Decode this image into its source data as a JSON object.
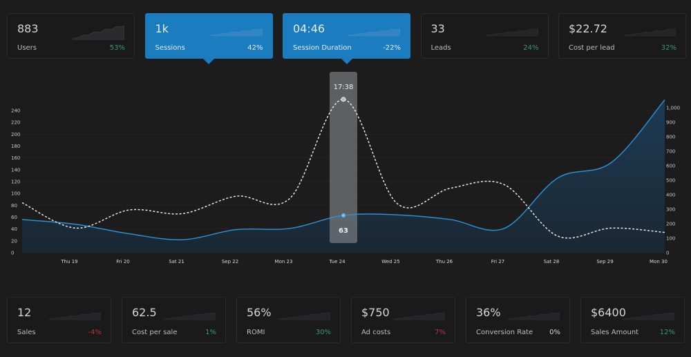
{
  "top_cards": [
    {
      "value": "883",
      "label": "Users",
      "change": "53%",
      "change_color": "#3a9a6a",
      "active": false
    },
    {
      "value": "1k",
      "label": "Sessions",
      "change": "42%",
      "change_color": "#e3eef7",
      "active": true
    },
    {
      "value": "04:46",
      "label": "Session Duration",
      "change": "-22%",
      "change_color": "#e3eef7",
      "active": true
    },
    {
      "value": "33",
      "label": "Leads",
      "change": "24%",
      "change_color": "#3a9a6a",
      "active": false
    },
    {
      "value": "$22.72",
      "label": "Cost per lead",
      "change": "32%",
      "change_color": "#3a9a6a",
      "active": false
    }
  ],
  "bottom_cards": [
    {
      "value": "12",
      "label": "Sales",
      "change": "-4%",
      "change_color": "#b8343a"
    },
    {
      "value": "62.5",
      "label": "Cost per sale",
      "change": "1%",
      "change_color": "#3a9a6a"
    },
    {
      "value": "56%",
      "label": "ROMI",
      "change": "30%",
      "change_color": "#3a9a6a"
    },
    {
      "value": "$750",
      "label": "Ad costs",
      "change": "7%",
      "change_color": "#b8343a"
    },
    {
      "value": "36%",
      "label": "Conversion Rate",
      "change": "0%",
      "change_color": "#d6d6d6"
    },
    {
      "value": "$6400",
      "label": "Sales Amount",
      "change": "12%",
      "change_color": "#3a9a6a"
    }
  ],
  "chart_data": {
    "type": "line",
    "categories": [
      "",
      "Thu 19",
      "Fri 20",
      "Sat 21",
      "Sep 22",
      "Mon 23",
      "Tue 24",
      "Wed 25",
      "Thu 26",
      "Fri 27",
      "Sat 28",
      "Sep 29",
      "Mon 30"
    ],
    "series": [
      {
        "axis": "left",
        "style": "solid-area",
        "color": "#2f8fd0",
        "values": [
          56,
          48,
          32,
          22,
          39,
          41,
          63,
          64,
          56,
          41,
          126,
          152,
          258
        ]
      },
      {
        "axis": "right",
        "style": "dashed",
        "color": "#e8e8e8",
        "values": [
          345,
          170,
          295,
          270,
          390,
          375,
          1058,
          340,
          445,
          470,
          115,
          170,
          140
        ]
      }
    ],
    "left_axis": {
      "ticks": [
        "0",
        "20",
        "40",
        "60",
        "80",
        "100",
        "120",
        "140",
        "160",
        "180",
        "200",
        "220",
        "240"
      ],
      "range": [
        0,
        240
      ]
    },
    "right_axis": {
      "ticks": [
        "0",
        "100",
        "200",
        "300",
        "400",
        "500",
        "600",
        "700",
        "800",
        "900",
        "1,000"
      ],
      "range": [
        0,
        1000
      ]
    },
    "grid": true,
    "tooltip": {
      "index": 6,
      "top_label": "17:38",
      "bottom_label": "63"
    }
  }
}
